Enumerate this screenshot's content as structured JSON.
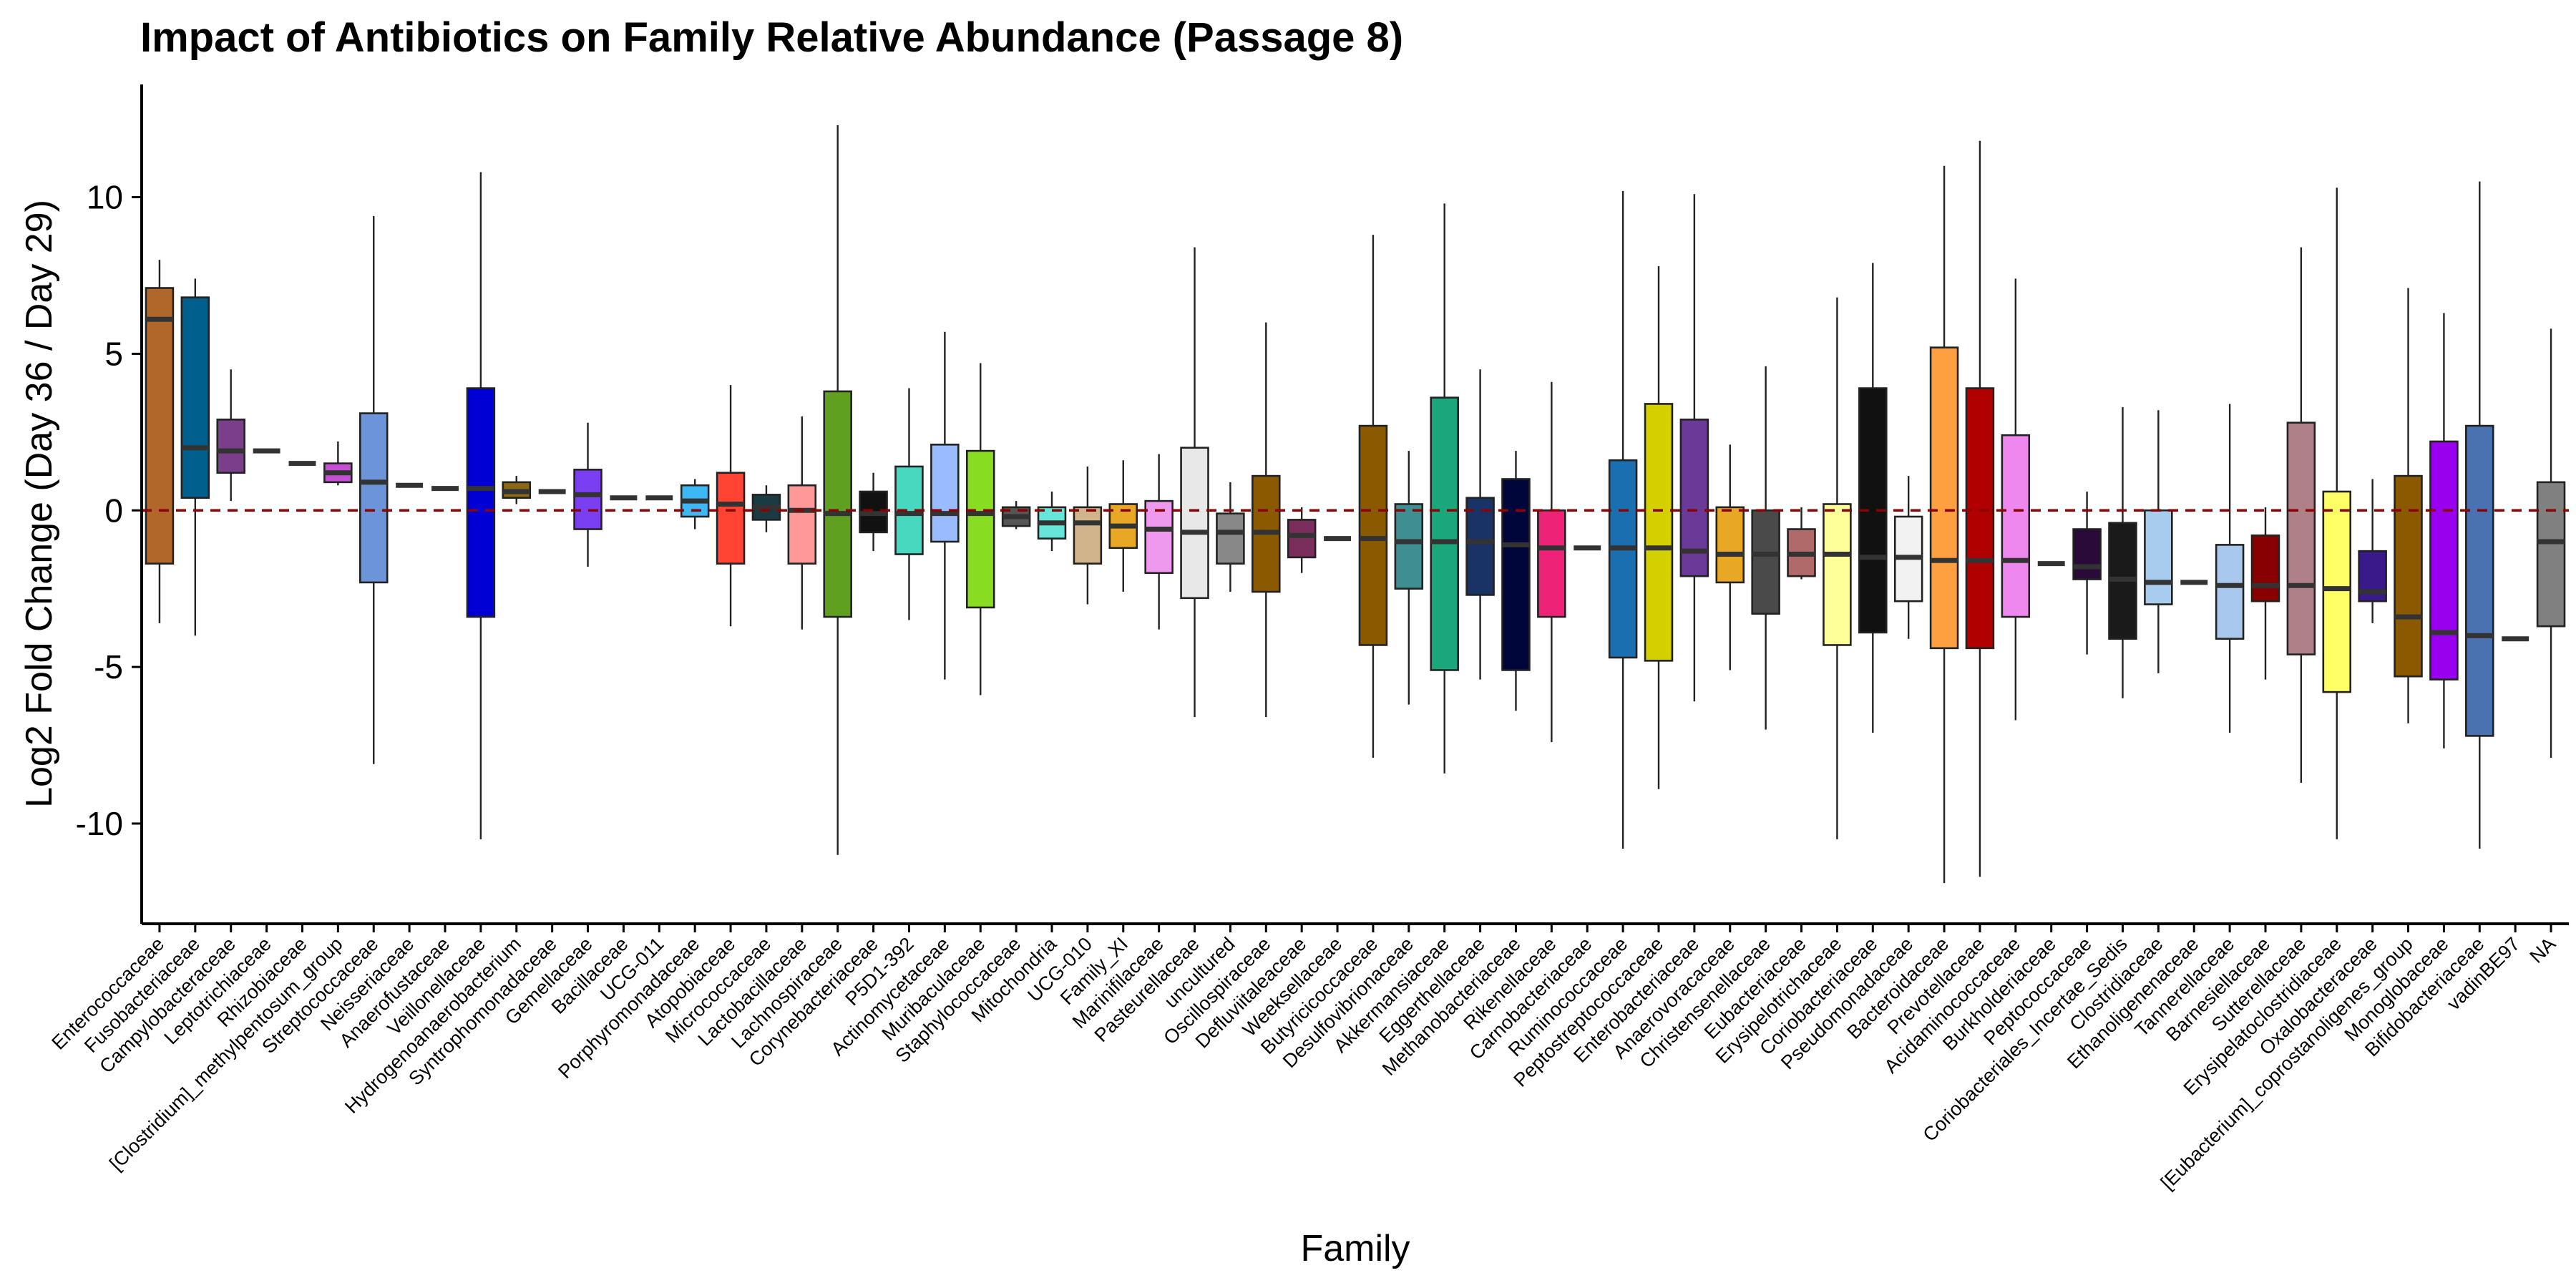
{
  "chart_data": {
    "type": "box",
    "title": "Impact of Antibiotics on Family Relative Abundance (Passage 8)",
    "xlabel": "Family",
    "ylabel": "Log2 Fold Change (Day 36 / Day 29)",
    "ylim": [
      -13.2,
      13.6
    ],
    "yticks": [
      -10,
      -5,
      0,
      5,
      10
    ],
    "reference_line": {
      "y": 0,
      "style": "dashed",
      "color": "#8B0000"
    },
    "grid": false,
    "legend": "none",
    "categories": [
      {
        "name": "Enterococcaceae",
        "lo": -3.6,
        "q1": -1.7,
        "med": 6.1,
        "q3": 7.1,
        "hi": 8.0,
        "color": "#B2672A"
      },
      {
        "name": "Fusobacteriaceae",
        "lo": -4.0,
        "q1": 0.4,
        "med": 2.0,
        "q3": 6.8,
        "hi": 7.4,
        "color": "#005F8C"
      },
      {
        "name": "Campylobacteraceae",
        "lo": 0.3,
        "q1": 1.2,
        "med": 1.9,
        "q3": 2.9,
        "hi": 4.5,
        "color": "#7A3E8A"
      },
      {
        "name": "Leptotrichiaceae",
        "lo": 1.9,
        "q1": 1.9,
        "med": 1.9,
        "q3": 1.9,
        "hi": 1.9,
        "color": "#888888"
      },
      {
        "name": "Rhizobiaceae",
        "lo": 1.5,
        "q1": 1.5,
        "med": 1.5,
        "q3": 1.5,
        "hi": 1.5,
        "color": "#888888"
      },
      {
        "name": "[Clostridium]_methylpentosum_group",
        "lo": 0.8,
        "q1": 0.9,
        "med": 1.2,
        "q3": 1.5,
        "hi": 2.2,
        "color": "#C64FD6"
      },
      {
        "name": "Streptococcaceae",
        "lo": -8.1,
        "q1": -2.3,
        "med": 0.9,
        "q3": 3.1,
        "hi": 9.4,
        "color": "#6C94D8"
      },
      {
        "name": "Neisseriaceae",
        "lo": 0.8,
        "q1": 0.8,
        "med": 0.8,
        "q3": 0.8,
        "hi": 0.8,
        "color": "#888888"
      },
      {
        "name": "Anaerofustaceae",
        "lo": 0.7,
        "q1": 0.7,
        "med": 0.7,
        "q3": 0.7,
        "hi": 0.7,
        "color": "#888888"
      },
      {
        "name": "Veillonellaceae",
        "lo": -10.5,
        "q1": -3.4,
        "med": 0.7,
        "q3": 3.9,
        "hi": 10.8,
        "color": "#0000D4"
      },
      {
        "name": "Hydrogenoanaerobacterium",
        "lo": 0.2,
        "q1": 0.4,
        "med": 0.6,
        "q3": 0.9,
        "hi": 1.1,
        "color": "#8B6914"
      },
      {
        "name": "Syntrophomonadaceae",
        "lo": 0.6,
        "q1": 0.6,
        "med": 0.6,
        "q3": 0.6,
        "hi": 0.6,
        "color": "#888888"
      },
      {
        "name": "Gemellaceae",
        "lo": -1.8,
        "q1": -0.6,
        "med": 0.5,
        "q3": 1.3,
        "hi": 2.8,
        "color": "#7B3FF2"
      },
      {
        "name": "Bacillaceae",
        "lo": 0.4,
        "q1": 0.4,
        "med": 0.4,
        "q3": 0.4,
        "hi": 0.4,
        "color": "#888888"
      },
      {
        "name": "UCG-011",
        "lo": 0.4,
        "q1": 0.4,
        "med": 0.4,
        "q3": 0.4,
        "hi": 0.4,
        "color": "#888888"
      },
      {
        "name": "Porphyromonadaceae",
        "lo": -0.6,
        "q1": -0.2,
        "med": 0.3,
        "q3": 0.8,
        "hi": 1.0,
        "color": "#3DB8F5"
      },
      {
        "name": "Atopobiaceae",
        "lo": -3.7,
        "q1": -1.7,
        "med": 0.2,
        "q3": 1.2,
        "hi": 4.0,
        "color": "#FF4433"
      },
      {
        "name": "Micrococcaceae",
        "lo": -0.7,
        "q1": -0.3,
        "med": 0.1,
        "q3": 0.5,
        "hi": 0.8,
        "color": "#1A3A44"
      },
      {
        "name": "Lactobacillaceae",
        "lo": -3.8,
        "q1": -1.7,
        "med": 0.0,
        "q3": 0.8,
        "hi": 3.0,
        "color": "#FF9999"
      },
      {
        "name": "Lachnospiraceae",
        "lo": -11.0,
        "q1": -3.4,
        "med": -0.1,
        "q3": 3.8,
        "hi": 12.3,
        "color": "#5FA020"
      },
      {
        "name": "Corynebacteriaceae",
        "lo": -1.3,
        "q1": -0.7,
        "med": -0.1,
        "q3": 0.6,
        "hi": 1.2,
        "color": "#111111"
      },
      {
        "name": "P5D1-392",
        "lo": -3.5,
        "q1": -1.4,
        "med": -0.1,
        "q3": 1.4,
        "hi": 3.9,
        "color": "#48D8C0"
      },
      {
        "name": "Actinomycetaceae",
        "lo": -5.4,
        "q1": -1.0,
        "med": -0.1,
        "q3": 2.1,
        "hi": 5.7,
        "color": "#99BBFF"
      },
      {
        "name": "Muribaculaceae",
        "lo": -5.9,
        "q1": -3.1,
        "med": -0.1,
        "q3": 1.9,
        "hi": 4.7,
        "color": "#88DD22"
      },
      {
        "name": "Staphylococcaceae",
        "lo": -0.6,
        "q1": -0.5,
        "med": -0.2,
        "q3": 0.1,
        "hi": 0.3,
        "color": "#555555"
      },
      {
        "name": "Mitochondria",
        "lo": -1.3,
        "q1": -0.9,
        "med": -0.4,
        "q3": 0.1,
        "hi": 0.6,
        "color": "#66E6D9"
      },
      {
        "name": "UCG-010",
        "lo": -3.0,
        "q1": -1.7,
        "med": -0.4,
        "q3": 0.1,
        "hi": 1.4,
        "color": "#D2B48C"
      },
      {
        "name": "Family_XI",
        "lo": -2.6,
        "q1": -1.2,
        "med": -0.5,
        "q3": 0.2,
        "hi": 1.6,
        "color": "#E8A825"
      },
      {
        "name": "Marinifilaceae",
        "lo": -3.8,
        "q1": -2.0,
        "med": -0.6,
        "q3": 0.3,
        "hi": 1.8,
        "color": "#EE99EE"
      },
      {
        "name": "Pasteurellaceae",
        "lo": -6.6,
        "q1": -2.8,
        "med": -0.7,
        "q3": 2.0,
        "hi": 8.4,
        "color": "#E8E8E8"
      },
      {
        "name": "uncultured",
        "lo": -2.6,
        "q1": -1.7,
        "med": -0.7,
        "q3": -0.1,
        "hi": 0.9,
        "color": "#888888"
      },
      {
        "name": "Oscillospiraceae",
        "lo": -6.6,
        "q1": -2.6,
        "med": -0.7,
        "q3": 1.1,
        "hi": 6.0,
        "color": "#8B5A00"
      },
      {
        "name": "Defluviitaleaceae",
        "lo": -2.0,
        "q1": -1.5,
        "med": -0.8,
        "q3": -0.3,
        "hi": 0.1,
        "color": "#7A2E5C"
      },
      {
        "name": "Weeksellaceae",
        "lo": -0.9,
        "q1": -0.9,
        "med": -0.9,
        "q3": -0.9,
        "hi": -0.9,
        "color": "#888888"
      },
      {
        "name": "Butyricicoccaceae",
        "lo": -7.9,
        "q1": -4.3,
        "med": -0.9,
        "q3": 2.7,
        "hi": 8.8,
        "color": "#8B5A00"
      },
      {
        "name": "Desulfovibrionaceae",
        "lo": -6.2,
        "q1": -2.5,
        "med": -1.0,
        "q3": 0.2,
        "hi": 1.9,
        "color": "#3E8E92"
      },
      {
        "name": "Akkermansiaceae",
        "lo": -8.4,
        "q1": -5.1,
        "med": -1.0,
        "q3": 3.6,
        "hi": 9.8,
        "color": "#1AA77B"
      },
      {
        "name": "Eggerthellaceae",
        "lo": -5.4,
        "q1": -2.7,
        "med": -1.0,
        "q3": 0.4,
        "hi": 4.5,
        "color": "#1A3366"
      },
      {
        "name": "Methanobacteriaceae",
        "lo": -6.4,
        "q1": -5.1,
        "med": -1.1,
        "q3": 1.0,
        "hi": 1.9,
        "color": "#00063A"
      },
      {
        "name": "Rikenellaceae",
        "lo": -7.4,
        "q1": -3.4,
        "med": -1.2,
        "q3": 0.0,
        "hi": 4.1,
        "color": "#EE2277"
      },
      {
        "name": "Carnobacteriaceae",
        "lo": -1.2,
        "q1": -1.2,
        "med": -1.2,
        "q3": -1.2,
        "hi": -1.2,
        "color": "#888888"
      },
      {
        "name": "Ruminococcaceae",
        "lo": -10.8,
        "q1": -4.7,
        "med": -1.2,
        "q3": 1.6,
        "hi": 10.2,
        "color": "#1A6FB0"
      },
      {
        "name": "Peptostreptococcaceae",
        "lo": -8.9,
        "q1": -4.8,
        "med": -1.2,
        "q3": 3.4,
        "hi": 7.8,
        "color": "#D4D000"
      },
      {
        "name": "Enterobacteriaceae",
        "lo": -6.1,
        "q1": -2.1,
        "med": -1.3,
        "q3": 2.9,
        "hi": 10.1,
        "color": "#6B3A99"
      },
      {
        "name": "Anaerovoracaceae",
        "lo": -5.1,
        "q1": -2.3,
        "med": -1.4,
        "q3": 0.1,
        "hi": 2.1,
        "color": "#E8A825"
      },
      {
        "name": "Christensenellaceae",
        "lo": -7.0,
        "q1": -3.3,
        "med": -1.4,
        "q3": 0.0,
        "hi": 4.6,
        "color": "#4A4A4A"
      },
      {
        "name": "Eubacteriaceae",
        "lo": -2.2,
        "q1": -2.1,
        "med": -1.4,
        "q3": -0.6,
        "hi": 0.1,
        "color": "#B06A6A"
      },
      {
        "name": "Erysipelotrichaceae",
        "lo": -10.5,
        "q1": -4.3,
        "med": -1.4,
        "q3": 0.2,
        "hi": 6.8,
        "color": "#FFFF99"
      },
      {
        "name": "Coriobacteriaceae",
        "lo": -7.1,
        "q1": -3.9,
        "med": -1.5,
        "q3": 3.9,
        "hi": 7.9,
        "color": "#111111"
      },
      {
        "name": "Pseudomonadaceae",
        "lo": -4.1,
        "q1": -2.9,
        "med": -1.5,
        "q3": -0.2,
        "hi": 1.1,
        "color": "#F2F2F2"
      },
      {
        "name": "Bacteroidaceae",
        "lo": -11.9,
        "q1": -4.4,
        "med": -1.6,
        "q3": 5.2,
        "hi": 11.0,
        "color": "#FFA040"
      },
      {
        "name": "Prevotellaceae",
        "lo": -11.7,
        "q1": -4.4,
        "med": -1.6,
        "q3": 3.9,
        "hi": 11.8,
        "color": "#B00000"
      },
      {
        "name": "Acidaminococcaceae",
        "lo": -6.7,
        "q1": -3.4,
        "med": -1.6,
        "q3": 2.4,
        "hi": 7.4,
        "color": "#EE88EE"
      },
      {
        "name": "Burkholderiaceae",
        "lo": -1.7,
        "q1": -1.7,
        "med": -1.7,
        "q3": -1.7,
        "hi": -1.7,
        "color": "#888888"
      },
      {
        "name": "Peptococcaceae",
        "lo": -4.6,
        "q1": -2.2,
        "med": -1.8,
        "q3": -0.6,
        "hi": 0.6,
        "color": "#2A0A38"
      },
      {
        "name": "Coriobacteriales_Incertae_Sedis",
        "lo": -6.0,
        "q1": -4.1,
        "med": -2.2,
        "q3": -0.4,
        "hi": 3.3,
        "color": "#1A1A1A"
      },
      {
        "name": "Clostridiaceae",
        "lo": -5.2,
        "q1": -3.0,
        "med": -2.3,
        "q3": 0.0,
        "hi": 3.2,
        "color": "#A8CCEE"
      },
      {
        "name": "Ethanoligenenaceae",
        "lo": -2.3,
        "q1": -2.3,
        "med": -2.3,
        "q3": -2.3,
        "hi": -2.3,
        "color": "#888888"
      },
      {
        "name": "Tannerellaceae",
        "lo": -7.1,
        "q1": -4.1,
        "med": -2.4,
        "q3": -1.1,
        "hi": 3.4,
        "color": "#A8C8EE"
      },
      {
        "name": "Barnesiellaceae",
        "lo": -5.4,
        "q1": -2.9,
        "med": -2.4,
        "q3": -0.8,
        "hi": 0.1,
        "color": "#880000"
      },
      {
        "name": "Sutterellaceae",
        "lo": -8.7,
        "q1": -4.6,
        "med": -2.4,
        "q3": 2.8,
        "hi": 8.4,
        "color": "#B08088"
      },
      {
        "name": "Erysipelatoclostridiaceae",
        "lo": -10.5,
        "q1": -5.8,
        "med": -2.5,
        "q3": 0.6,
        "hi": 10.3,
        "color": "#FFFF66"
      },
      {
        "name": "Oxalobacteraceae",
        "lo": -3.6,
        "q1": -2.9,
        "med": -2.6,
        "q3": -1.3,
        "hi": 1.0,
        "color": "#3A1A88"
      },
      {
        "name": "[Eubacterium]_coprostanoligenes_group",
        "lo": -6.8,
        "q1": -5.3,
        "med": -3.4,
        "q3": 1.1,
        "hi": 7.1,
        "color": "#8B5A00"
      },
      {
        "name": "Monoglobaceae",
        "lo": -7.6,
        "q1": -5.4,
        "med": -3.9,
        "q3": 2.2,
        "hi": 6.3,
        "color": "#9900EE"
      },
      {
        "name": "Bifidobacteriaceae",
        "lo": -10.8,
        "q1": -7.2,
        "med": -4.0,
        "q3": 2.7,
        "hi": 10.5,
        "color": "#4A72B0"
      },
      {
        "name": "vadinBE97",
        "lo": -4.1,
        "q1": -4.1,
        "med": -4.1,
        "q3": -4.1,
        "hi": -4.1,
        "color": "#888888"
      },
      {
        "name": "NA",
        "lo": -7.9,
        "q1": -3.7,
        "med": -1.0,
        "q3": 0.9,
        "hi": 5.8,
        "color": "#808080"
      }
    ]
  }
}
